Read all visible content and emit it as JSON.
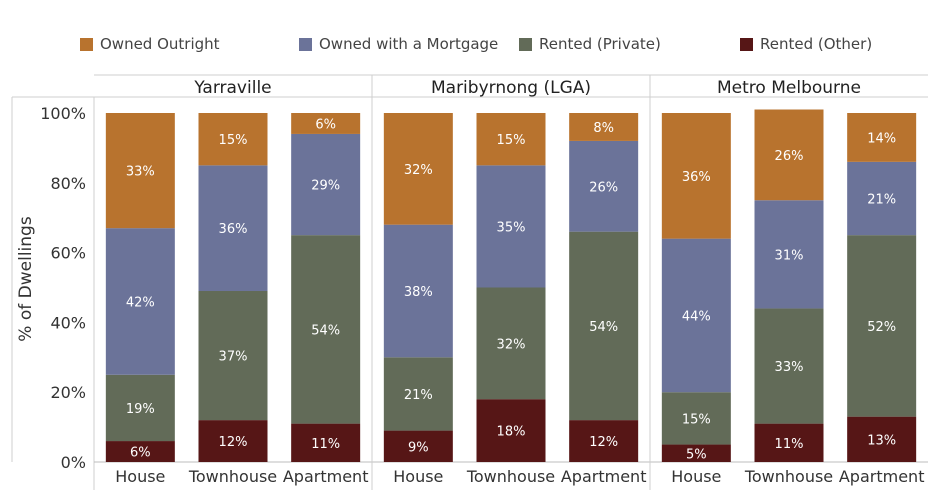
{
  "legend": {
    "owned_outright": "Owned Outright",
    "owned_mortgage": "Owned with a Mortgage",
    "rented_private": "Rented (Private)",
    "rented_other": "Rented (Other)"
  },
  "colors": {
    "owned_outright": "#b8732e",
    "owned_mortgage": "#6b7399",
    "rented_private": "#626b58",
    "rented_other": "#561616"
  },
  "chart_data": {
    "type": "bar",
    "stacked": true,
    "ylabel": "% of Dwellings",
    "ylim": [
      0,
      100
    ],
    "yticks": [
      "0%",
      "20%",
      "40%",
      "60%",
      "80%",
      "100%"
    ],
    "series_keys": [
      "rented_other",
      "rented_private",
      "owned_mortgage",
      "owned_outright"
    ],
    "groups": [
      {
        "name": "Yarraville",
        "categories": [
          "House",
          "Townhouse",
          "Apartment"
        ],
        "series": [
          {
            "name": "Rented (Other)",
            "values": [
              6,
              12,
              11
            ]
          },
          {
            "name": "Rented (Private)",
            "values": [
              19,
              37,
              54
            ]
          },
          {
            "name": "Owned with a Mortgage",
            "values": [
              42,
              36,
              29
            ]
          },
          {
            "name": "Owned Outright",
            "values": [
              33,
              15,
              6
            ]
          }
        ]
      },
      {
        "name": "Maribyrnong (LGA)",
        "categories": [
          "House",
          "Townhouse",
          "Apartment"
        ],
        "series": [
          {
            "name": "Rented (Other)",
            "values": [
              9,
              18,
              12
            ]
          },
          {
            "name": "Rented (Private)",
            "values": [
              21,
              32,
              54
            ]
          },
          {
            "name": "Owned with a Mortgage",
            "values": [
              38,
              35,
              26
            ]
          },
          {
            "name": "Owned Outright",
            "values": [
              32,
              15,
              8
            ]
          }
        ]
      },
      {
        "name": "Metro Melbourne",
        "categories": [
          "House",
          "Townhouse",
          "Apartment"
        ],
        "series": [
          {
            "name": "Rented (Other)",
            "values": [
              5,
              11,
              13
            ]
          },
          {
            "name": "Rented (Private)",
            "values": [
              15,
              33,
              52
            ]
          },
          {
            "name": "Owned with a Mortgage",
            "values": [
              44,
              31,
              21
            ]
          },
          {
            "name": "Owned Outright",
            "values": [
              36,
              26,
              14
            ]
          }
        ]
      }
    ]
  }
}
